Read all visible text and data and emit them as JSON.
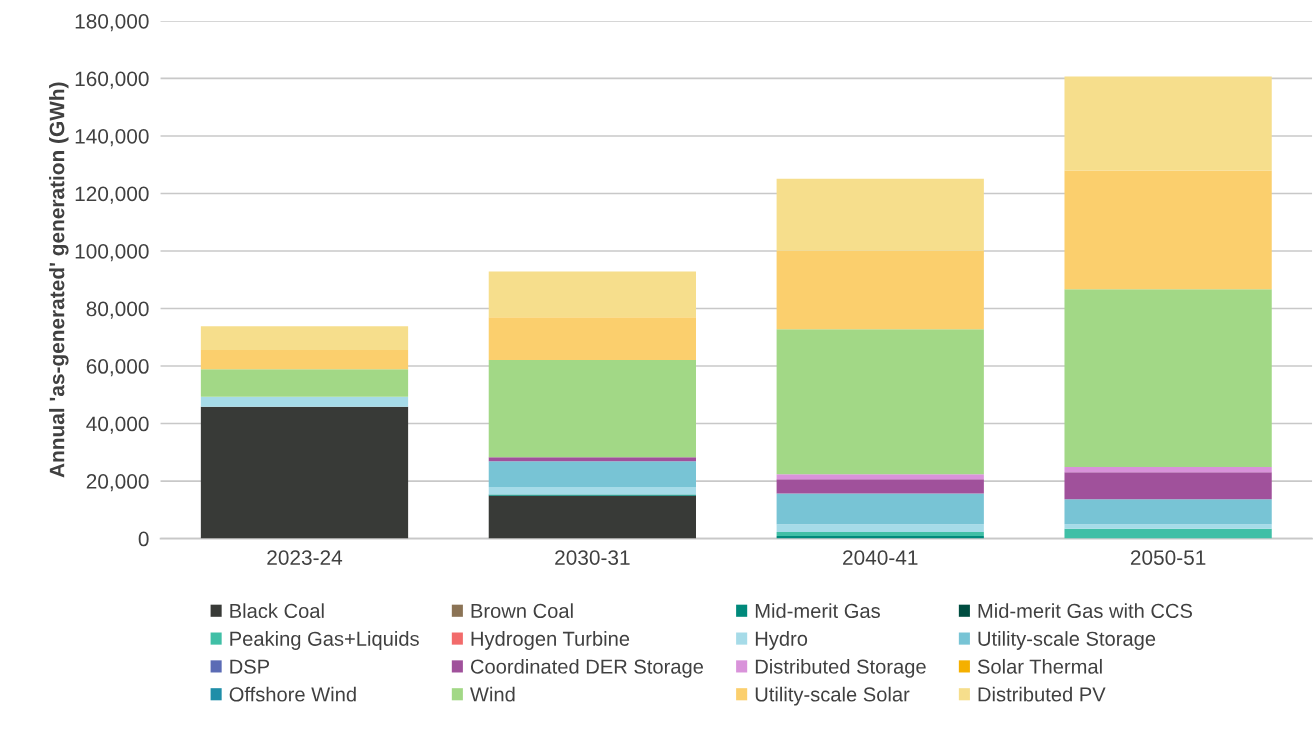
{
  "chart_data": {
    "type": "bar",
    "stacked": true,
    "ylabel": "Annual 'as-generated' generation (GWh)",
    "categories": [
      "2023-24",
      "2030-31",
      "2040-41",
      "2050-51"
    ],
    "ylim": [
      0,
      180000
    ],
    "yticks": [
      {
        "value": 0,
        "label": "0"
      },
      {
        "value": 20000,
        "label": "20,000"
      },
      {
        "value": 40000,
        "label": "40,000"
      },
      {
        "value": 60000,
        "label": "60,000"
      },
      {
        "value": 80000,
        "label": "80,000"
      },
      {
        "value": 100000,
        "label": "100,000"
      },
      {
        "value": 120000,
        "label": "120,000"
      },
      {
        "value": 140000,
        "label": "140,000"
      },
      {
        "value": 160000,
        "label": "160,000"
      },
      {
        "value": 180000,
        "label": "180,000"
      }
    ],
    "grid": "y",
    "legend": "bottom",
    "series": [
      {
        "name": "Black Coal",
        "color": "#383a37",
        "values": [
          45800,
          14900,
          0,
          0
        ]
      },
      {
        "name": "Brown Coal",
        "color": "#8b7355",
        "values": [
          0,
          0,
          0,
          0
        ]
      },
      {
        "name": "Mid-merit Gas",
        "color": "#00897b",
        "values": [
          0,
          400,
          900,
          0
        ]
      },
      {
        "name": "Mid-merit Gas with CCS",
        "color": "#004d40",
        "values": [
          0,
          0,
          0,
          0
        ]
      },
      {
        "name": "Peaking Gas+Liquids",
        "color": "#40bfa6",
        "values": [
          0,
          0,
          1400,
          3400
        ]
      },
      {
        "name": "Hydrogen Turbine",
        "color": "#f26b6b",
        "values": [
          0,
          0,
          0,
          0
        ]
      },
      {
        "name": "Hydro",
        "color": "#a6dbe8",
        "values": [
          3500,
          2600,
          2700,
          1600
        ]
      },
      {
        "name": "Utility-scale Storage",
        "color": "#78c4d5",
        "values": [
          0,
          9000,
          10700,
          8700
        ]
      },
      {
        "name": "DSP",
        "color": "#5b6bb5",
        "values": [
          0,
          0,
          0,
          0
        ]
      },
      {
        "name": "Coordinated DER Storage",
        "color": "#a0519b",
        "values": [
          0,
          1400,
          4900,
          9400
        ]
      },
      {
        "name": "Distributed Storage",
        "color": "#d993da",
        "values": [
          0,
          0,
          1800,
          1800
        ]
      },
      {
        "name": "Solar Thermal",
        "color": "#f5b000",
        "values": [
          0,
          0,
          0,
          0
        ]
      },
      {
        "name": "Offshore Wind",
        "color": "#1f8ea8",
        "values": [
          0,
          0,
          0,
          0
        ]
      },
      {
        "name": "Wind",
        "color": "#a2d886",
        "values": [
          9600,
          33800,
          50400,
          61800
        ]
      },
      {
        "name": "Utility-scale Solar",
        "color": "#fbcf6d",
        "values": [
          6700,
          14900,
          27300,
          41300
        ]
      },
      {
        "name": "Distributed PV",
        "color": "#f6de8c",
        "values": [
          8200,
          15900,
          25000,
          32700
        ]
      }
    ]
  }
}
